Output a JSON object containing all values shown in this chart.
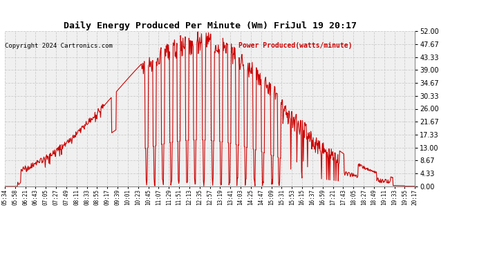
{
  "title": "Daily Energy Produced Per Minute (Wm) FriJul 19 20:17",
  "copyright": "Copyright 2024 Cartronics.com",
  "legend_label": "Power Produced(watts/minute)",
  "legend_color": "#cc0000",
  "copyright_color": "#000000",
  "title_color": "#000000",
  "line_color": "#cc0000",
  "background_color": "#ffffff",
  "plot_bg_color": "#f0f0f0",
  "grid_color": "#cccccc",
  "yticks": [
    0.0,
    4.33,
    8.67,
    13.0,
    17.33,
    21.67,
    26.0,
    30.33,
    34.67,
    39.0,
    43.33,
    47.67,
    52.0
  ],
  "ymin": 0,
  "ymax": 52,
  "xtick_labels": [
    "05:34",
    "05:58",
    "06:21",
    "06:43",
    "07:05",
    "07:27",
    "07:49",
    "08:11",
    "08:33",
    "08:55",
    "09:17",
    "09:39",
    "10:01",
    "10:23",
    "10:45",
    "11:07",
    "11:29",
    "11:51",
    "12:13",
    "12:35",
    "12:57",
    "13:19",
    "13:41",
    "14:03",
    "14:25",
    "14:47",
    "15:09",
    "15:31",
    "15:53",
    "16:15",
    "16:37",
    "16:59",
    "17:21",
    "17:43",
    "18:05",
    "18:27",
    "18:49",
    "19:11",
    "19:33",
    "19:55",
    "20:17"
  ]
}
